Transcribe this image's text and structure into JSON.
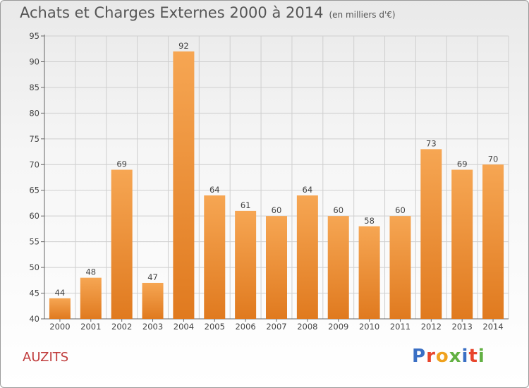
{
  "chart_data": {
    "type": "bar",
    "title": "Achats et Charges Externes 2000 à 2014",
    "subtitle": "(en milliers d'€)",
    "categories": [
      "2000",
      "2001",
      "2002",
      "2003",
      "2004",
      "2005",
      "2006",
      "2007",
      "2008",
      "2009",
      "2010",
      "2011",
      "2012",
      "2013",
      "2014"
    ],
    "values": [
      44,
      48,
      69,
      47,
      92,
      64,
      61,
      60,
      64,
      60,
      58,
      60,
      73,
      69,
      70
    ],
    "ylim": [
      40,
      95
    ],
    "yticks": [
      40,
      45,
      50,
      55,
      60,
      65,
      70,
      75,
      80,
      85,
      90,
      95
    ],
    "grid": true,
    "xlabel": "",
    "ylabel": ""
  },
  "commune": "AUZITS",
  "logo": {
    "text": "Proxiti",
    "colors": [
      "#3a6fc4",
      "#e8452c",
      "#f0a21e",
      "#62b042",
      "#3a6fc4",
      "#e8452c",
      "#62b042"
    ]
  },
  "colors": {
    "bar_top": "#f6a653",
    "bar_bottom": "#e07a1f",
    "grid": "#cfcfcf",
    "commune": "#c03c3c"
  }
}
